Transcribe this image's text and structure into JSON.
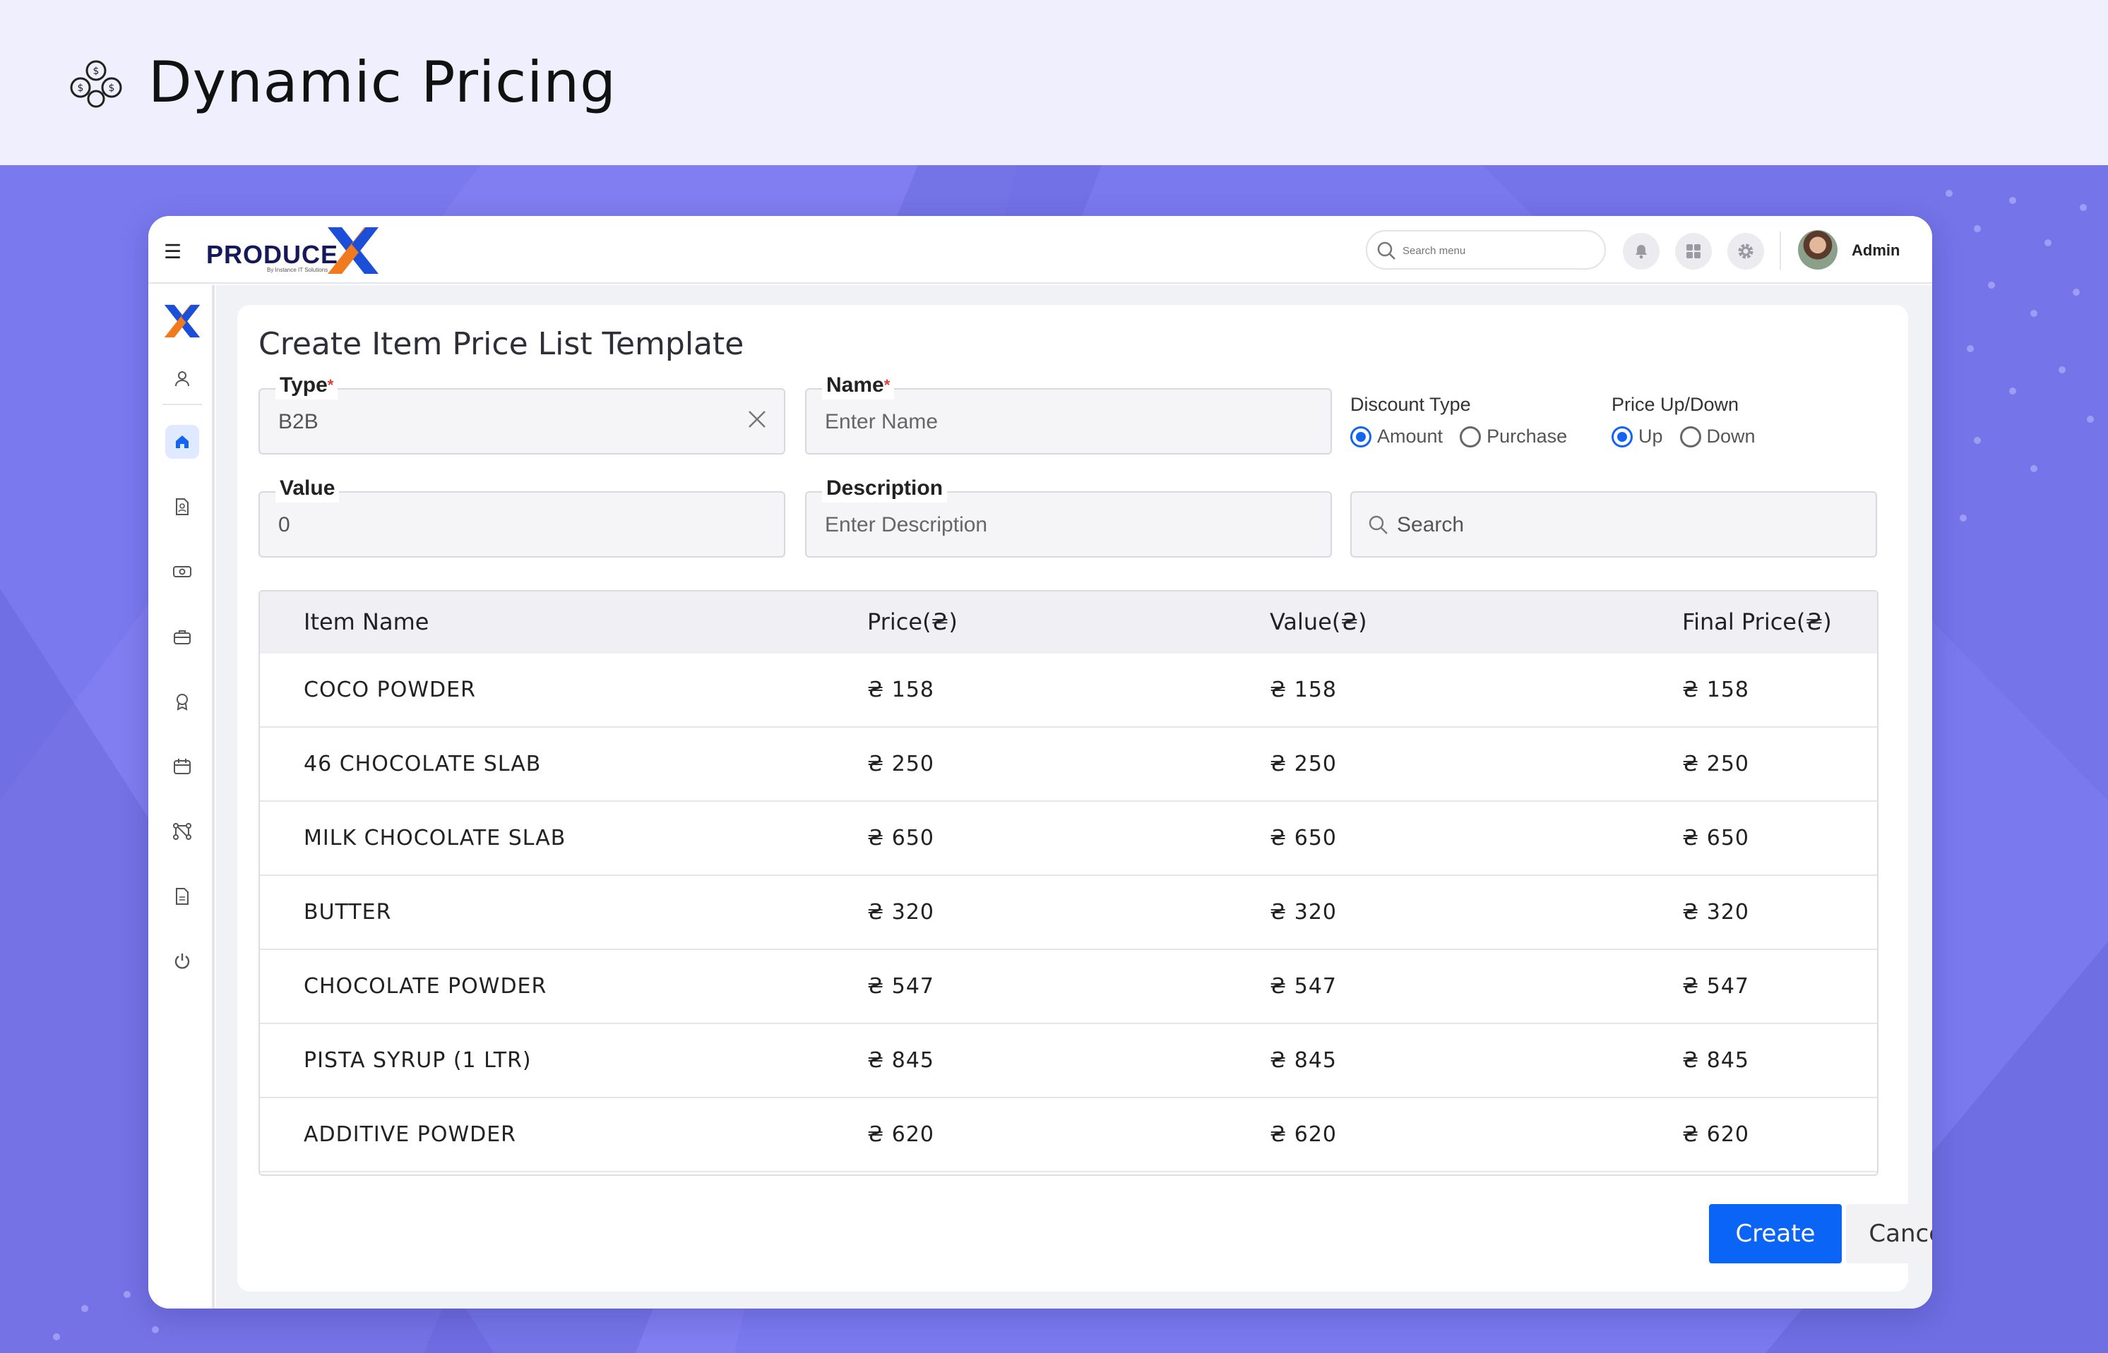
{
  "banner": {
    "title": "Dynamic Pricing",
    "icon": "coins-exchange-icon"
  },
  "colors": {
    "stage": "#7a79ee",
    "accent": "#0a64f5",
    "banner": "#efeffd"
  },
  "topbar": {
    "logo_text": "PRODUCE",
    "logo_sub": "By Instance IT Solutions",
    "search_placeholder": "Search menu",
    "user_name": "Admin"
  },
  "sidebar": {
    "items": [
      {
        "name": "profile",
        "icon": "user-icon"
      },
      {
        "name": "home",
        "icon": "home-icon",
        "active": true
      },
      {
        "name": "documents",
        "icon": "document-user-icon"
      },
      {
        "name": "payments",
        "icon": "cash-icon"
      },
      {
        "name": "jobs",
        "icon": "briefcase-icon"
      },
      {
        "name": "awards",
        "icon": "badge-icon"
      },
      {
        "name": "calendar",
        "icon": "calendar-icon"
      },
      {
        "name": "workflow",
        "icon": "workflow-icon"
      },
      {
        "name": "reports",
        "icon": "report-icon"
      },
      {
        "name": "logout",
        "icon": "power-icon"
      }
    ]
  },
  "form": {
    "title": "Create Item Price List Template",
    "type": {
      "label": "Type",
      "required_mark": "*",
      "value": "B2B"
    },
    "name": {
      "label": "Name",
      "required_mark": "*",
      "placeholder": "Enter Name"
    },
    "discount_type": {
      "label": "Discount Type",
      "options": [
        "Amount",
        "Purchase"
      ],
      "selected": "Amount"
    },
    "price_direction": {
      "label": "Price Up/Down",
      "options": [
        "Up",
        "Down"
      ],
      "selected": "Up"
    },
    "value": {
      "label": "Value",
      "value": "0"
    },
    "description": {
      "label": "Description",
      "placeholder": "Enter Description"
    },
    "search": {
      "placeholder": "Search"
    }
  },
  "table": {
    "headers": [
      "Item Name",
      "Price(₴)",
      "Value(₴)",
      "Final Price(₴)"
    ],
    "rows": [
      [
        "COCO POWDER",
        "₴ 158",
        "₴ 158",
        "₴ 158"
      ],
      [
        "46 CHOCOLATE SLAB",
        "₴ 250",
        "₴ 250",
        "₴ 250"
      ],
      [
        "MILK CHOCOLATE SLAB",
        "₴ 650",
        "₴ 650",
        "₴ 650"
      ],
      [
        "BUTTER",
        "₴ 320",
        "₴ 320",
        "₴ 320"
      ],
      [
        "CHOCOLATE POWDER",
        "₴ 547",
        "₴ 547",
        "₴ 547"
      ],
      [
        "PISTA SYRUP (1 LTR)",
        "₴ 845",
        "₴ 845",
        "₴ 845"
      ],
      [
        "ADDITIVE POWDER",
        "₴ 620",
        "₴ 620",
        "₴ 620"
      ]
    ]
  },
  "actions": {
    "create": "Create",
    "cancel": "Cancel"
  }
}
